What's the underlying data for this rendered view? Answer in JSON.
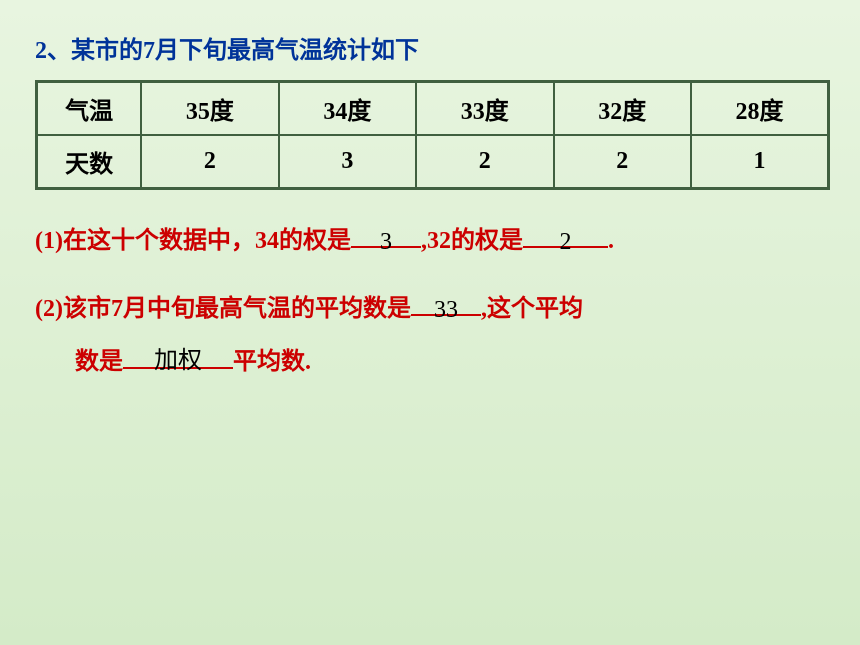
{
  "title": "2、某市的7月下旬最高气温统计如下",
  "table": {
    "row1": {
      "header": "气温",
      "cells": [
        "35度",
        "34度",
        "33度",
        "32度",
        "28度"
      ]
    },
    "row2": {
      "header": "天数",
      "cells": [
        "2",
        "3",
        "2",
        "2",
        "1"
      ]
    }
  },
  "q1": {
    "prefix": "(1)在这十个数据中，34的权是",
    "answer1": "3",
    "mid": ",32的权是",
    "answer2": "2",
    "suffix": "."
  },
  "q2": {
    "line1_prefix": "(2)该市7月中旬最高气温的平均数是",
    "answer1": "33",
    "line1_suffix": ",这个平均",
    "line2_prefix": "数是",
    "answer2": "加权",
    "line2_suffix": "平均数."
  },
  "colors": {
    "title_color": "#003399",
    "question_color": "#cc0000",
    "answer_color": "#000000",
    "border_color": "#406040",
    "bg_top": "#e8f5e0",
    "bg_bottom": "#d4ebc8"
  }
}
